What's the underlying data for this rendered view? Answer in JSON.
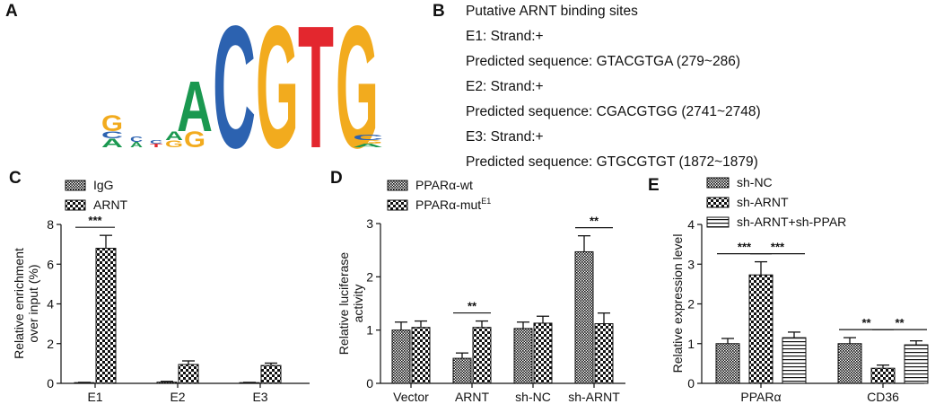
{
  "panels": {
    "A": {
      "letter": "A"
    },
    "B": {
      "letter": "B",
      "lines": [
        "Putative ARNT binding sites",
        "E1: Strand:+",
        "Predicted sequence: GTACGTGA (279~286)",
        "E2: Strand:+",
        "Predicted sequence: CGACGTGG (2741~2748)",
        "E3: Strand:+",
        "Predicted sequence: GTGCGTGT (1872~1879)"
      ]
    },
    "C": {
      "letter": "C"
    },
    "D": {
      "letter": "D"
    },
    "E": {
      "letter": "E"
    }
  },
  "logo": {
    "main_letters": [
      "A",
      "C",
      "G",
      "T",
      "G"
    ],
    "colors": {
      "A": "#1a9850",
      "C": "#2c62b0",
      "G": "#f2ab1e",
      "T": "#e3272e"
    }
  },
  "chart_data": [
    {
      "id": "C",
      "type": "bar",
      "ylabel": "Relative enrichment over input (%)",
      "ylabel_lines": [
        "Relative enrichment",
        "over input (%)"
      ],
      "ylim": [
        0,
        8
      ],
      "yticks": [
        0,
        2,
        4,
        6,
        8
      ],
      "categories": [
        "E1",
        "E2",
        "E3"
      ],
      "series": [
        {
          "name": "IgG",
          "values": [
            0.03,
            0.06,
            0.03
          ],
          "errors": [
            0.02,
            0.04,
            0.02
          ],
          "pattern": "dense"
        },
        {
          "name": "ARNT",
          "values": [
            6.8,
            0.95,
            0.9
          ],
          "errors": [
            0.65,
            0.18,
            0.12
          ],
          "pattern": "check"
        }
      ],
      "significance": [
        {
          "category": 0,
          "label": "***"
        }
      ],
      "legend_position": "top-left"
    },
    {
      "id": "D",
      "type": "bar",
      "ylabel": "Relative luciferase activity",
      "ylabel_lines": [
        "Relative luciferase",
        "activity"
      ],
      "ylim": [
        0,
        3
      ],
      "yticks": [
        0,
        1,
        2,
        3
      ],
      "categories": [
        "Vector",
        "ARNT",
        "sh-NC",
        "sh-ARNT"
      ],
      "series": [
        {
          "name": "PPARα-wt",
          "values": [
            1.0,
            0.47,
            1.03,
            2.47
          ],
          "errors": [
            0.15,
            0.1,
            0.12,
            0.3
          ],
          "pattern": "dense"
        },
        {
          "name": "PPARα-mut",
          "sup": "E1",
          "values": [
            1.05,
            1.05,
            1.13,
            1.12
          ],
          "errors": [
            0.12,
            0.12,
            0.13,
            0.2
          ],
          "pattern": "check"
        }
      ],
      "significance": [
        {
          "category": 1,
          "label": "**"
        },
        {
          "category": 3,
          "label": "**"
        }
      ],
      "legend_position": "top-left"
    },
    {
      "id": "E",
      "type": "bar",
      "ylabel": "Relative expression level",
      "ylim": [
        0,
        4
      ],
      "yticks": [
        0,
        1,
        2,
        3,
        4
      ],
      "categories": [
        "PPARα",
        "CD36"
      ],
      "series": [
        {
          "name": "sh-NC",
          "values": [
            1.0,
            1.0
          ],
          "errors": [
            0.13,
            0.15
          ],
          "pattern": "dense"
        },
        {
          "name": "sh-ARNT",
          "values": [
            2.73,
            0.38
          ],
          "errors": [
            0.33,
            0.08
          ],
          "pattern": "check"
        },
        {
          "name": "sh-ARNT+sh-PPAR",
          "values": [
            1.15,
            0.97
          ],
          "errors": [
            0.14,
            0.1
          ],
          "pattern": "hstripe"
        }
      ],
      "significance": [
        {
          "category": 0,
          "from": 0,
          "to": 1,
          "label": "***"
        },
        {
          "category": 0,
          "from": 1,
          "to": 2,
          "label": "***"
        },
        {
          "category": 1,
          "from": 0,
          "to": 1,
          "label": "**"
        },
        {
          "category": 1,
          "from": 1,
          "to": 2,
          "label": "**"
        }
      ],
      "legend_position": "top-left"
    }
  ]
}
